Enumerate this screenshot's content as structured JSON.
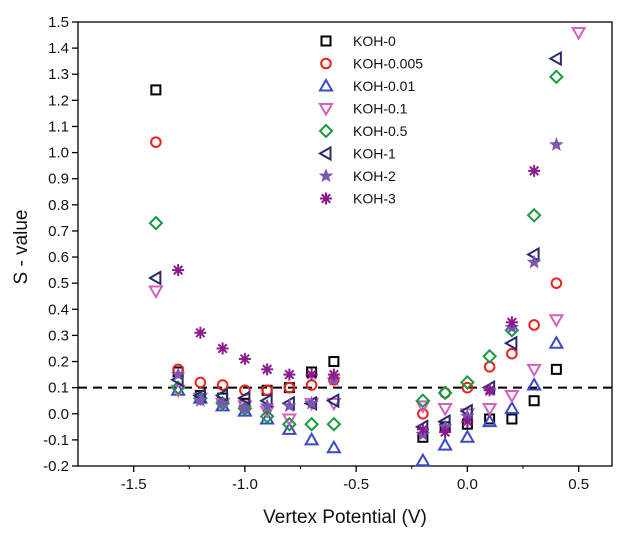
{
  "chart_data": {
    "type": "scatter",
    "title": "",
    "xlabel": "Vertex Potential (V)",
    "ylabel": "S - value",
    "xlim": [
      -1.75,
      0.65
    ],
    "ylim": [
      -0.2,
      1.5
    ],
    "x_ticks": [
      -1.5,
      -1.0,
      -0.5,
      0.0,
      0.5
    ],
    "x_tick_labels": [
      "-1.5",
      "-1.0",
      "-0.5",
      "0.0",
      "0.5"
    ],
    "y_ticks": [
      -0.2,
      -0.1,
      0.0,
      0.1,
      0.2,
      0.3,
      0.4,
      0.5,
      0.6,
      0.7,
      0.8,
      0.9,
      1.0,
      1.1,
      1.2,
      1.3,
      1.4,
      1.5
    ],
    "y_tick_labels": [
      "-0.2",
      "-0.1",
      "0.0",
      "0.1",
      "0.2",
      "0.3",
      "0.4",
      "0.5",
      "0.6",
      "0.7",
      "0.8",
      "0.9",
      "1.0",
      "1.1",
      "1.2",
      "1.3",
      "1.4",
      "1.5"
    ],
    "grid": false,
    "legend_position": "top-center",
    "reference_line": {
      "y": 0.1,
      "style": "dashed",
      "color": "#000000"
    },
    "series": [
      {
        "name": "KOH-0",
        "marker": "square",
        "color": "#000000",
        "points": [
          [
            -1.4,
            1.24
          ],
          [
            -1.3,
            0.16
          ],
          [
            -1.2,
            0.07
          ],
          [
            -1.1,
            0.06
          ],
          [
            -1.0,
            0.04
          ],
          [
            -0.9,
            0.09
          ],
          [
            -0.8,
            0.1
          ],
          [
            -0.7,
            0.16
          ],
          [
            -0.6,
            0.2
          ],
          [
            -0.2,
            -0.09
          ],
          [
            -0.1,
            -0.05
          ],
          [
            0.0,
            -0.04
          ],
          [
            0.1,
            -0.02
          ],
          [
            0.2,
            -0.02
          ],
          [
            0.3,
            0.05
          ],
          [
            0.4,
            0.17
          ]
        ]
      },
      {
        "name": "KOH-0.005",
        "marker": "circle",
        "color": "#e8231d",
        "points": [
          [
            -1.4,
            1.04
          ],
          [
            -1.3,
            0.17
          ],
          [
            -1.2,
            0.12
          ],
          [
            -1.1,
            0.11
          ],
          [
            -1.0,
            0.09
          ],
          [
            -0.9,
            0.09
          ],
          [
            -0.8,
            0.1
          ],
          [
            -0.7,
            0.11
          ],
          [
            -0.6,
            0.13
          ],
          [
            -0.2,
            0.0
          ],
          [
            -0.1,
            0.08
          ],
          [
            0.0,
            0.1
          ],
          [
            0.1,
            0.18
          ],
          [
            0.2,
            0.23
          ],
          [
            0.3,
            0.34
          ],
          [
            0.4,
            0.5
          ]
        ]
      },
      {
        "name": "KOH-0.01",
        "marker": "triangle-up",
        "color": "#3a49c6",
        "points": [
          [
            -1.3,
            0.09
          ],
          [
            -1.2,
            0.06
          ],
          [
            -1.1,
            0.03
          ],
          [
            -1.0,
            0.01
          ],
          [
            -0.9,
            -0.02
          ],
          [
            -0.8,
            -0.06
          ],
          [
            -0.7,
            -0.1
          ],
          [
            -0.6,
            -0.13
          ],
          [
            -0.2,
            -0.18
          ],
          [
            -0.1,
            -0.12
          ],
          [
            0.0,
            -0.09
          ],
          [
            0.1,
            -0.03
          ],
          [
            0.2,
            0.02
          ],
          [
            0.3,
            0.11
          ],
          [
            0.4,
            0.27
          ]
        ]
      },
      {
        "name": "KOH-0.1",
        "marker": "triangle-down",
        "color": "#d55fbf",
        "points": [
          [
            -1.4,
            0.47
          ],
          [
            -1.3,
            0.09
          ],
          [
            -1.2,
            0.06
          ],
          [
            -1.1,
            0.04
          ],
          [
            -1.0,
            0.03
          ],
          [
            -0.9,
            0.01
          ],
          [
            -0.8,
            -0.02
          ],
          [
            -0.7,
            0.04
          ],
          [
            -0.6,
            0.04
          ],
          [
            -0.2,
            0.03
          ],
          [
            -0.1,
            0.02
          ],
          [
            0.0,
            0.0
          ],
          [
            0.1,
            0.02
          ],
          [
            0.2,
            0.07
          ],
          [
            0.3,
            0.17
          ],
          [
            0.4,
            0.36
          ],
          [
            0.5,
            1.46
          ]
        ]
      },
      {
        "name": "KOH-0.5",
        "marker": "diamond",
        "color": "#199a3e",
        "points": [
          [
            -1.4,
            0.73
          ],
          [
            -1.3,
            0.1
          ],
          [
            -1.2,
            0.06
          ],
          [
            -1.1,
            0.04
          ],
          [
            -1.0,
            0.02
          ],
          [
            -0.9,
            -0.01
          ],
          [
            -0.8,
            -0.04
          ],
          [
            -0.7,
            -0.04
          ],
          [
            -0.6,
            -0.04
          ],
          [
            -0.2,
            0.05
          ],
          [
            -0.1,
            0.08
          ],
          [
            0.0,
            0.12
          ],
          [
            0.1,
            0.22
          ],
          [
            0.2,
            0.32
          ],
          [
            0.3,
            0.76
          ],
          [
            0.4,
            1.29
          ]
        ]
      },
      {
        "name": "KOH-1",
        "marker": "triangle-left",
        "color": "#272b6e",
        "points": [
          [
            -1.4,
            0.52
          ],
          [
            -1.3,
            0.13
          ],
          [
            -1.2,
            0.07
          ],
          [
            -1.1,
            0.07
          ],
          [
            -1.0,
            0.06
          ],
          [
            -0.9,
            0.05
          ],
          [
            -0.8,
            0.04
          ],
          [
            -0.7,
            0.04
          ],
          [
            -0.6,
            0.05
          ],
          [
            -0.2,
            -0.05
          ],
          [
            -0.1,
            -0.03
          ],
          [
            0.0,
            0.01
          ],
          [
            0.1,
            0.1
          ],
          [
            0.2,
            0.27
          ],
          [
            0.3,
            0.61
          ],
          [
            0.4,
            1.36
          ]
        ]
      },
      {
        "name": "KOH-2",
        "marker": "star",
        "color": "#7d55b5",
        "points": [
          [
            -1.3,
            0.15
          ],
          [
            -1.2,
            0.05
          ],
          [
            -1.1,
            0.04
          ],
          [
            -1.0,
            0.02
          ],
          [
            -0.9,
            0.03
          ],
          [
            -0.8,
            0.03
          ],
          [
            -0.7,
            0.04
          ],
          [
            -0.6,
            0.13
          ],
          [
            -0.2,
            -0.08
          ],
          [
            -0.1,
            -0.05
          ],
          [
            0.0,
            -0.01
          ],
          [
            0.1,
            0.09
          ],
          [
            0.2,
            0.33
          ],
          [
            0.3,
            0.58
          ],
          [
            0.4,
            1.03
          ]
        ]
      },
      {
        "name": "KOH-3",
        "marker": "asterisk",
        "color": "#8b1a8b",
        "points": [
          [
            -1.3,
            0.55
          ],
          [
            -1.2,
            0.31
          ],
          [
            -1.1,
            0.25
          ],
          [
            -1.0,
            0.21
          ],
          [
            -0.9,
            0.17
          ],
          [
            -0.8,
            0.15
          ],
          [
            -0.7,
            0.15
          ],
          [
            -0.6,
            0.15
          ],
          [
            -0.2,
            -0.06
          ],
          [
            -0.1,
            -0.07
          ],
          [
            0.0,
            -0.03
          ],
          [
            0.1,
            0.09
          ],
          [
            0.2,
            0.35
          ],
          [
            0.3,
            0.93
          ]
        ]
      }
    ]
  }
}
